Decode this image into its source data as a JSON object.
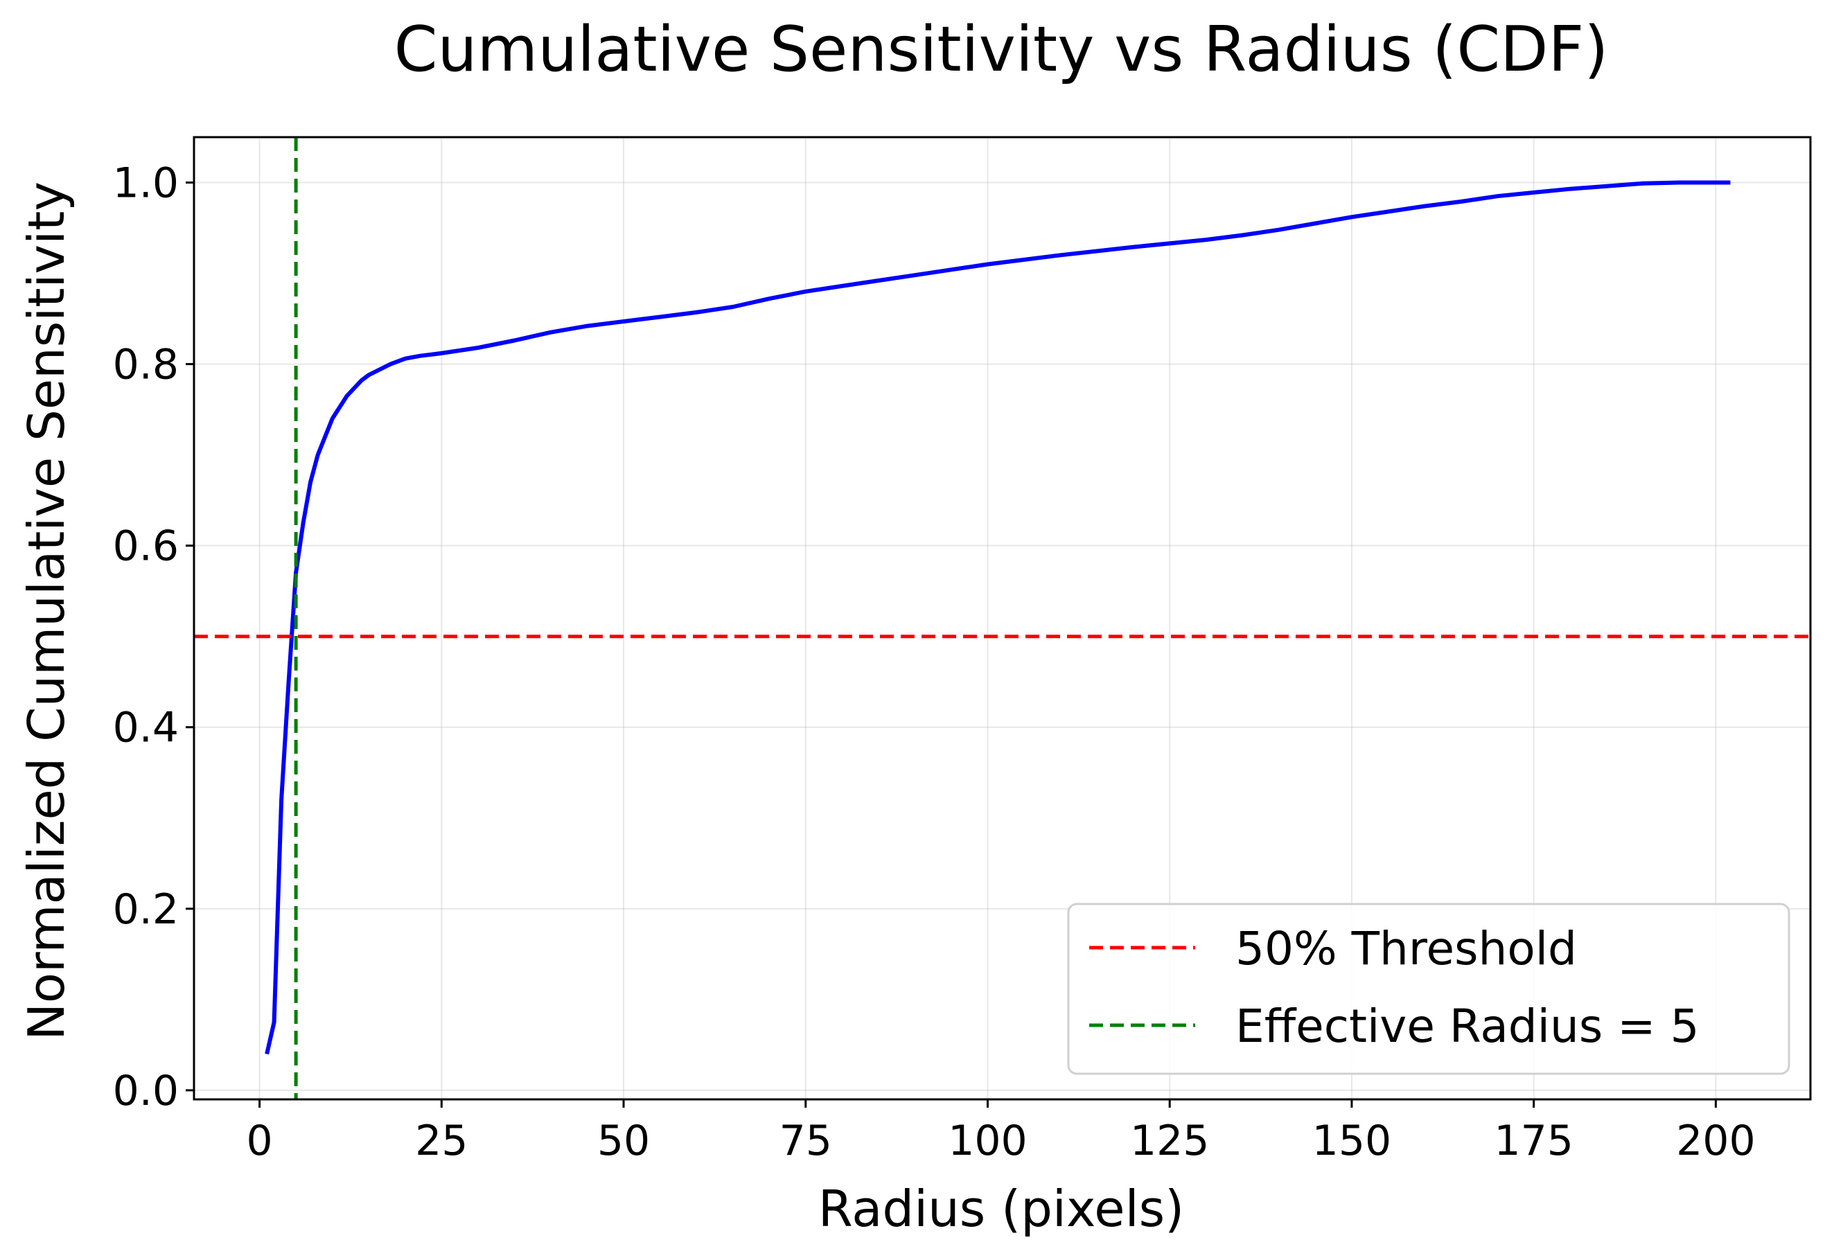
{
  "chart_data": {
    "type": "line",
    "title": "Cumulative Sensitivity vs Radius (CDF)",
    "xlabel": "Radius (pixels)",
    "ylabel": "Normalized Cumulative Sensitivity",
    "xlim": [
      -9,
      213
    ],
    "ylim": [
      -0.01,
      1.05
    ],
    "xticks": [
      0,
      25,
      50,
      75,
      100,
      125,
      150,
      175,
      200
    ],
    "yticks": [
      0.0,
      0.2,
      0.4,
      0.6,
      0.8,
      1.0
    ],
    "xtick_labels": [
      "0",
      "25",
      "50",
      "75",
      "100",
      "125",
      "150",
      "175",
      "200"
    ],
    "ytick_labels": [
      "0.0",
      "0.2",
      "0.4",
      "0.6",
      "0.8",
      "1.0"
    ],
    "grid": true,
    "legend_position": "bottom-right",
    "series": [
      {
        "color": "#0000ff",
        "style": "solid",
        "x": [
          1,
          2,
          3,
          4,
          5,
          6,
          7,
          8,
          10,
          12,
          14,
          15,
          16,
          18,
          20,
          22,
          25,
          30,
          35,
          40,
          45,
          50,
          55,
          60,
          65,
          70,
          75,
          80,
          85,
          90,
          95,
          100,
          110,
          120,
          130,
          135,
          140,
          145,
          150,
          155,
          160,
          165,
          170,
          175,
          180,
          185,
          190,
          195,
          200,
          202
        ],
        "y": [
          0.04,
          0.075,
          0.32,
          0.45,
          0.57,
          0.625,
          0.67,
          0.7,
          0.74,
          0.765,
          0.782,
          0.788,
          0.792,
          0.8,
          0.806,
          0.809,
          0.812,
          0.818,
          0.826,
          0.835,
          0.842,
          0.847,
          0.852,
          0.857,
          0.863,
          0.872,
          0.88,
          0.886,
          0.892,
          0.898,
          0.904,
          0.91,
          0.92,
          0.929,
          0.937,
          0.942,
          0.948,
          0.955,
          0.962,
          0.968,
          0.974,
          0.979,
          0.985,
          0.989,
          0.993,
          0.996,
          0.999,
          1.0,
          1.0,
          1.0
        ]
      },
      {
        "name": "50% Threshold",
        "color": "#ff0000",
        "style": "dashed",
        "orientation": "horizontal",
        "value": 0.5
      },
      {
        "name": "Effective Radius = 5",
        "color": "#008000",
        "style": "dashed",
        "orientation": "vertical",
        "value": 5
      }
    ]
  }
}
